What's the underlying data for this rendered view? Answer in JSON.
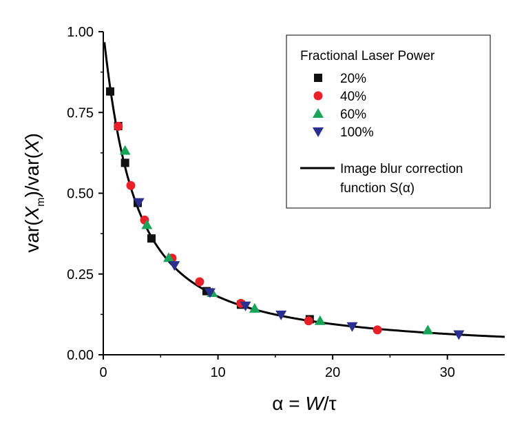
{
  "chart_data": {
    "type": "scatter",
    "xlabel_parts": [
      "α = ",
      "W",
      "/τ"
    ],
    "ylabel_parts": [
      "var(",
      "X",
      "m",
      ")/var(",
      "X",
      ")"
    ],
    "xlim": [
      0,
      35
    ],
    "ylim": [
      0,
      1.0
    ],
    "x_ticks": [
      0,
      10,
      20,
      30
    ],
    "x_tick_labels": [
      "0",
      "10",
      "20",
      "30"
    ],
    "y_ticks": [
      0,
      0.25,
      0.5,
      0.75,
      1.0
    ],
    "y_tick_labels": [
      "0.00",
      "0.25",
      "0.50",
      "0.75",
      "1.00"
    ],
    "grid": false,
    "legend_position": "top-right",
    "legend_title": "Fractional Laser Power",
    "series": [
      {
        "name": "20%",
        "marker": "square",
        "color": "#111111",
        "points": [
          [
            0.6,
            0.815
          ],
          [
            1.3,
            0.708
          ],
          [
            1.9,
            0.594
          ],
          [
            3.0,
            0.47
          ],
          [
            4.2,
            0.36
          ],
          [
            9.0,
            0.197
          ],
          [
            12.0,
            0.155
          ],
          [
            18.0,
            0.11
          ]
        ]
      },
      {
        "name": "40%",
        "marker": "circle",
        "color": "#e8202a",
        "points": [
          [
            1.3,
            0.707
          ],
          [
            2.4,
            0.524
          ],
          [
            3.6,
            0.417
          ],
          [
            6.0,
            0.299
          ],
          [
            8.4,
            0.226
          ],
          [
            12.0,
            0.159
          ],
          [
            17.9,
            0.105
          ],
          [
            23.9,
            0.077
          ]
        ]
      },
      {
        "name": "60%",
        "marker": "triangle-up",
        "color": "#1aa45a",
        "points": [
          [
            1.9,
            0.632
          ],
          [
            3.8,
            0.402
          ],
          [
            5.7,
            0.3
          ],
          [
            9.5,
            0.192
          ],
          [
            13.2,
            0.143
          ],
          [
            18.9,
            0.105
          ],
          [
            28.3,
            0.076
          ]
        ]
      },
      {
        "name": "100%",
        "marker": "triangle-down",
        "color": "#2a2f8f",
        "points": [
          [
            3.1,
            0.472
          ],
          [
            6.2,
            0.277
          ],
          [
            9.3,
            0.193
          ],
          [
            12.4,
            0.152
          ],
          [
            15.5,
            0.124
          ],
          [
            21.7,
            0.088
          ],
          [
            31.0,
            0.063
          ]
        ]
      }
    ],
    "curve": {
      "name_line1": "Image blur correction",
      "name_line2": "function S(α)",
      "color": "#000000",
      "function": "S(a) = 2/a - 2/a^2*(1 - exp(-a))",
      "x_range": [
        0.1,
        35
      ]
    }
  }
}
